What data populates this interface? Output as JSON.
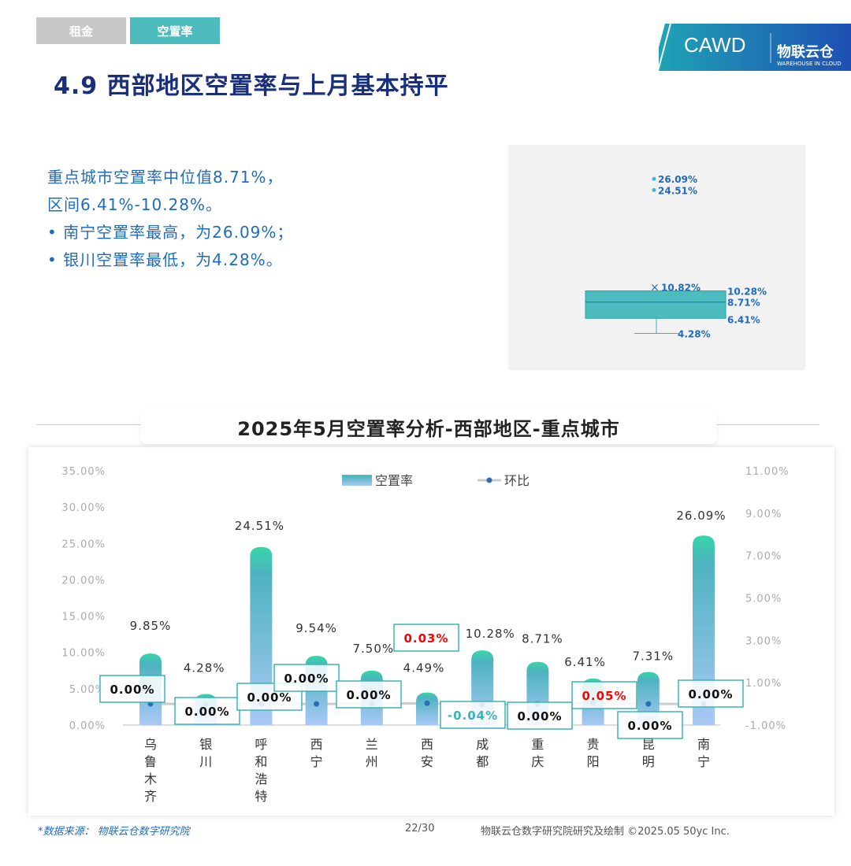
{
  "tabs": [
    {
      "label": "租金",
      "active": false
    },
    {
      "label": "空置率",
      "active": true
    }
  ],
  "logo": {
    "text": "CAWD",
    "brand": "物联云仓",
    "sub": "WAREHOUSE IN CLOUD"
  },
  "title": "4.9 西部地区空置率与上月基本持平",
  "summary": [
    "重点城市空置率中位值8.71%，",
    "区间6.41%-10.28%。",
    "•  南宁空置率最高，为26.09%；",
    "•  银川空置率最低，为4.28%。"
  ],
  "boxplot": {
    "outliers": [
      "26.09%",
      "24.51%"
    ],
    "mean": "10.82%",
    "q3": "10.28%",
    "median": "8.71%",
    "q1": "6.41%",
    "min": "4.28%",
    "values": {
      "outliers": [
        26.09,
        24.51
      ],
      "mean": 10.82,
      "q3": 10.28,
      "median": 8.71,
      "q1": 6.41,
      "min": 4.28
    }
  },
  "chart_data": {
    "type": "bar",
    "title": "2025年5月空置率分析-西部地区-重点城市",
    "categories": [
      "乌鲁木齐",
      "银川",
      "呼和浩特",
      "西宁",
      "兰州",
      "西安",
      "成都",
      "重庆",
      "贵阳",
      "昆明",
      "南宁"
    ],
    "series": [
      {
        "name": "空置率",
        "type": "bar",
        "axis": "left",
        "values": [
          9.85,
          4.28,
          24.51,
          9.54,
          7.5,
          4.49,
          10.28,
          8.71,
          6.41,
          7.31,
          26.09
        ],
        "labels": [
          "9.85%",
          "4.28%",
          "24.51%",
          "9.54%",
          "7.50%",
          "4.49%",
          "10.28%",
          "8.71%",
          "6.41%",
          "7.31%",
          "26.09%"
        ]
      },
      {
        "name": "环比",
        "type": "line",
        "axis": "right",
        "values": [
          0,
          0,
          0,
          0,
          0,
          0.03,
          -0.04,
          0,
          0.05,
          0,
          0
        ],
        "labels": [
          "0.00%",
          "0.00%",
          "0.00%",
          "0.00%",
          "0.00%",
          "0.03%",
          "-0.04%",
          "0.00%",
          "0.05%",
          "0.00%",
          "0.00%"
        ]
      }
    ],
    "yleft": {
      "range": [
        0,
        35
      ],
      "ticks": [
        "0.00%",
        "5.00%",
        "10.00%",
        "15.00%",
        "20.00%",
        "25.00%",
        "30.00%",
        "35.00%"
      ]
    },
    "yright": {
      "range": [
        -1,
        11
      ],
      "ticks": [
        "-1.00%",
        "1.00%",
        "3.00%",
        "5.00%",
        "7.00%",
        "9.00%",
        "11.00%"
      ]
    },
    "legend": "top-center",
    "grid": false,
    "colors": {
      "bar_top": "#36d6a8",
      "bar_mid": "#4db3c0",
      "bar_bottom": "#a9c8f5",
      "line": "#cccccc",
      "point": "#2a6fb5",
      "positive": "#ff0000",
      "negative": "#3bb4b8",
      "box_border": "#3bb4b8"
    }
  },
  "footer": {
    "source": "*数据来源： 物联云仓数字研究院",
    "page": "22/30",
    "credit": "物联云仓数字研究院研究及绘制   ©2025.05 50yc Inc."
  }
}
